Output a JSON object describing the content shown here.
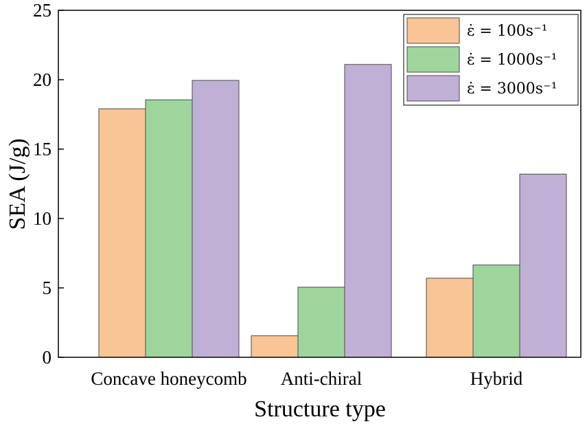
{
  "chart_data": {
    "type": "bar",
    "title": "",
    "xlabel": "Structure type",
    "ylabel": "SEA (J/g)",
    "categories": [
      "Concave honeycomb",
      "Anti-chiral",
      "Hybrid"
    ],
    "ylim": [
      0,
      25
    ],
    "yticks": [
      0,
      5,
      10,
      15,
      20,
      25
    ],
    "legend_position": "top-right",
    "grid": false,
    "series": [
      {
        "name": "ε̇ = 100s⁻¹",
        "color": "#f9c596",
        "values": [
          17.9,
          1.55,
          5.7
        ]
      },
      {
        "name": "ε̇ = 1000s⁻¹",
        "color": "#9ed59c",
        "values": [
          18.55,
          5.05,
          6.65
        ]
      },
      {
        "name": "ε̇ = 3000s⁻¹",
        "color": "#c1b0d6",
        "values": [
          19.95,
          21.1,
          13.2
        ]
      }
    ]
  }
}
